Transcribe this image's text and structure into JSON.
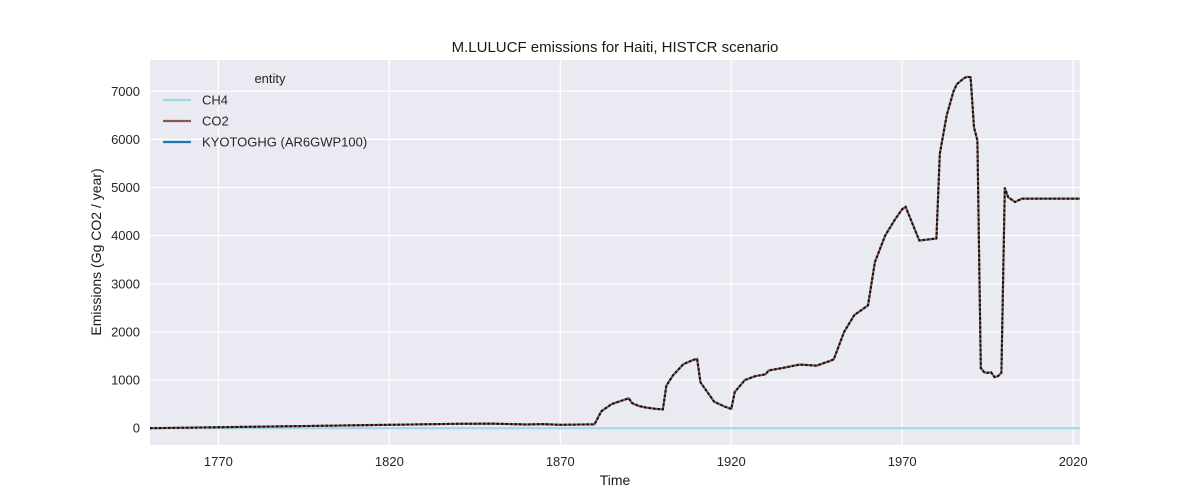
{
  "chart_data": {
    "type": "line",
    "title": "M.LULUCF emissions for Haiti, HISTCR scenario",
    "xlabel": "Time",
    "ylabel": "Emissions (Gg CO2 / year)",
    "xlim": [
      1750,
      2022
    ],
    "ylim": [
      -350,
      7650
    ],
    "xticks": [
      1770,
      1820,
      1870,
      1920,
      1970,
      2020
    ],
    "yticks": [
      0,
      1000,
      2000,
      3000,
      4000,
      5000,
      6000,
      7000
    ],
    "grid": true,
    "legend": {
      "title": "entity",
      "position": "top-left"
    },
    "series": [
      {
        "name": "CH4",
        "color": "#9edae5",
        "style": "solid",
        "x": [
          1750,
          2022
        ],
        "y": [
          0,
          0
        ]
      },
      {
        "name": "CO2",
        "color": "#8c564b",
        "style": "solid",
        "x": [
          1750,
          1800,
          1820,
          1840,
          1850,
          1860,
          1865,
          1870,
          1880,
          1882,
          1885,
          1890,
          1891,
          1893,
          1895,
          1898,
          1900,
          1901,
          1903,
          1906,
          1909,
          1910,
          1911,
          1915,
          1918,
          1920,
          1921,
          1924,
          1927,
          1930,
          1931,
          1935,
          1940,
          1945,
          1949,
          1950,
          1953,
          1956,
          1959,
          1960,
          1962,
          1965,
          1968,
          1970,
          1971,
          1975,
          1980,
          1981,
          1983,
          1985,
          1986,
          1988,
          1989,
          1990,
          1991,
          1992,
          1993,
          1994,
          1995,
          1996,
          1997,
          1998,
          1999,
          2000,
          2001,
          2003,
          2005,
          2022
        ],
        "y": [
          0,
          50,
          70,
          90,
          95,
          75,
          85,
          70,
          80,
          350,
          500,
          620,
          520,
          460,
          430,
          400,
          390,
          880,
          1100,
          1330,
          1420,
          1440,
          950,
          550,
          450,
          400,
          750,
          1000,
          1080,
          1120,
          1200,
          1250,
          1320,
          1300,
          1400,
          1430,
          2000,
          2350,
          2500,
          2550,
          3450,
          4000,
          4350,
          4550,
          4600,
          3900,
          3940,
          5700,
          6500,
          7000,
          7150,
          7270,
          7300,
          7290,
          6250,
          5980,
          1250,
          1160,
          1150,
          1160,
          1060,
          1080,
          1150,
          4990,
          4800,
          4700,
          4770,
          4770
        ]
      },
      {
        "name": "KYOTOGHG (AR6GWP100)",
        "color": "#1f77b4",
        "style": "solid",
        "x": [
          1750,
          1800,
          1820,
          1840,
          1850,
          1860,
          1865,
          1870,
          1880,
          1882,
          1885,
          1890,
          1891,
          1893,
          1895,
          1898,
          1900,
          1901,
          1903,
          1906,
          1909,
          1910,
          1911,
          1915,
          1918,
          1920,
          1921,
          1924,
          1927,
          1930,
          1931,
          1935,
          1940,
          1945,
          1949,
          1950,
          1953,
          1956,
          1959,
          1960,
          1962,
          1965,
          1968,
          1970,
          1971,
          1975,
          1980,
          1981,
          1983,
          1985,
          1986,
          1988,
          1989,
          1990,
          1991,
          1992,
          1993,
          1994,
          1995,
          1996,
          1997,
          1998,
          1999,
          2000,
          2001,
          2003,
          2005,
          2022
        ],
        "y": [
          0,
          50,
          70,
          90,
          95,
          75,
          85,
          70,
          80,
          350,
          500,
          620,
          520,
          460,
          430,
          400,
          390,
          880,
          1100,
          1330,
          1420,
          1440,
          950,
          550,
          450,
          400,
          750,
          1000,
          1080,
          1120,
          1200,
          1250,
          1320,
          1300,
          1400,
          1430,
          2000,
          2350,
          2500,
          2550,
          3450,
          4000,
          4350,
          4550,
          4600,
          3900,
          3940,
          5700,
          6500,
          7000,
          7150,
          7270,
          7300,
          7290,
          6250,
          5980,
          1250,
          1160,
          1150,
          1160,
          1060,
          1080,
          1150,
          4990,
          4800,
          4700,
          4770,
          4770
        ]
      }
    ]
  }
}
